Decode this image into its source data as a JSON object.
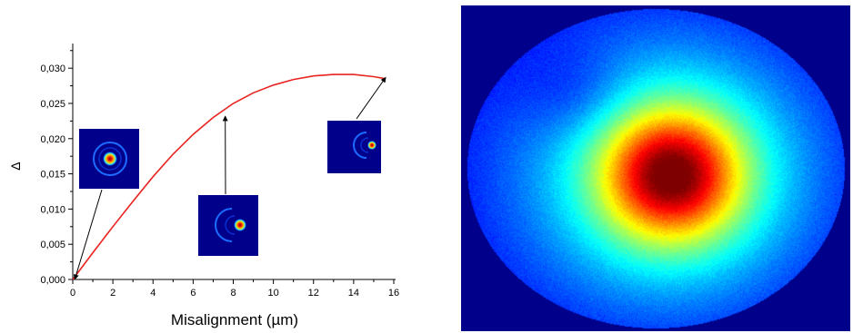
{
  "chart_data": {
    "type": "line",
    "xlabel": "Misalignment (µm)",
    "ylabel": "Δ",
    "xlim": [
      0,
      16
    ],
    "ylim": [
      0,
      0.0335
    ],
    "x_ticks": [
      0,
      2,
      4,
      6,
      8,
      10,
      12,
      14,
      16
    ],
    "x_tick_labels": [
      "0",
      "2",
      "4",
      "6",
      "8",
      "10",
      "12",
      "14",
      "16"
    ],
    "y_ticks": [
      0,
      0.005,
      0.01,
      0.015,
      0.02,
      0.025,
      0.03
    ],
    "y_tick_labels": [
      "0,000",
      "0,005",
      "0,010",
      "0,015",
      "0,020",
      "0,025",
      "0,030"
    ],
    "grid": false,
    "series": [
      {
        "color": "#e8231f",
        "x": [
          0,
          1,
          2,
          3,
          4,
          5,
          6,
          7,
          8,
          9,
          10,
          11,
          12,
          13,
          14,
          15,
          15.6
        ],
        "y": [
          0.0,
          0.0038,
          0.0075,
          0.0111,
          0.0146,
          0.0178,
          0.0206,
          0.023,
          0.025,
          0.0265,
          0.0276,
          0.0284,
          0.0289,
          0.0291,
          0.0291,
          0.0288,
          0.0285
        ]
      }
    ],
    "annotations": [
      {
        "type": "arrow",
        "points_to": {
          "x": 0.1,
          "y": 0.0
        },
        "inset": "beam-profile-centered"
      },
      {
        "type": "arrow",
        "points_to": {
          "x": 7.6,
          "y": 0.0232
        },
        "inset": "beam-profile-shifted"
      },
      {
        "type": "arrow",
        "points_to": {
          "x": 15.6,
          "y": 0.0287
        },
        "inset": "beam-profile-edge"
      }
    ]
  },
  "colors": {
    "curve": "#e8231f",
    "inset_background": "#00008b",
    "heatmap_background": "#00008b",
    "heatmap_colormap": "jet"
  },
  "figure": {
    "right_panel": "beam-intensity-heatmap"
  }
}
